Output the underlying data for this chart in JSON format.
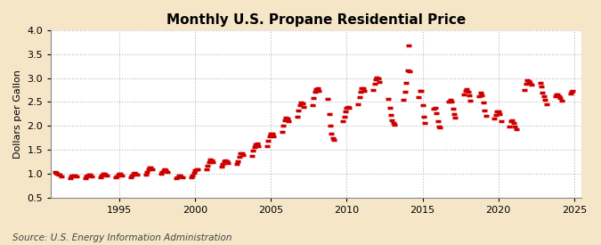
{
  "title": "Monthly U.S. Propane Residential Price",
  "ylabel": "Dollars per Gallon",
  "source_text": "Source: U.S. Energy Information Administration",
  "xlim": [
    1990.5,
    2025.5
  ],
  "ylim": [
    0.5,
    4.0
  ],
  "yticks": [
    0.5,
    1.0,
    1.5,
    2.0,
    2.5,
    3.0,
    3.5,
    4.0
  ],
  "xticks": [
    1995,
    2000,
    2005,
    2010,
    2015,
    2020,
    2025
  ],
  "fig_bg_color": "#F5E6C8",
  "plot_bg_color": "#FFFFFF",
  "marker_color": "#CC0000",
  "grid_color": "#BBBBBB",
  "title_fontsize": 11,
  "ylabel_fontsize": 8,
  "source_fontsize": 7.5,
  "data": [
    [
      1990.75,
      1.04
    ],
    [
      1990.833,
      1.02
    ],
    [
      1990.917,
      0.994
    ],
    [
      1991.0,
      0.985
    ],
    [
      1991.083,
      0.977
    ],
    [
      1991.167,
      0.948
    ],
    [
      1991.75,
      0.905
    ],
    [
      1991.833,
      0.936
    ],
    [
      1991.917,
      0.963
    ],
    [
      1992.0,
      0.96
    ],
    [
      1992.083,
      0.965
    ],
    [
      1992.167,
      0.945
    ],
    [
      1992.75,
      0.905
    ],
    [
      1992.833,
      0.938
    ],
    [
      1992.917,
      0.963
    ],
    [
      1993.0,
      0.98
    ],
    [
      1993.083,
      0.972
    ],
    [
      1993.167,
      0.946
    ],
    [
      1993.75,
      0.93
    ],
    [
      1993.833,
      0.965
    ],
    [
      1993.917,
      0.994
    ],
    [
      1994.0,
      1.005
    ],
    [
      1994.083,
      0.988
    ],
    [
      1994.167,
      0.953
    ],
    [
      1994.75,
      0.916
    ],
    [
      1994.833,
      0.95
    ],
    [
      1994.917,
      0.983
    ],
    [
      1995.0,
      1.003
    ],
    [
      1995.083,
      0.99
    ],
    [
      1995.167,
      0.96
    ],
    [
      1995.75,
      0.927
    ],
    [
      1995.833,
      0.963
    ],
    [
      1995.917,
      0.994
    ],
    [
      1996.0,
      1.013
    ],
    [
      1996.083,
      1.003
    ],
    [
      1996.167,
      0.978
    ],
    [
      1996.75,
      0.985
    ],
    [
      1996.833,
      1.04
    ],
    [
      1996.917,
      1.09
    ],
    [
      1997.0,
      1.12
    ],
    [
      1997.083,
      1.12
    ],
    [
      1997.167,
      1.09
    ],
    [
      1997.75,
      1.0
    ],
    [
      1997.833,
      1.04
    ],
    [
      1997.917,
      1.075
    ],
    [
      1998.0,
      1.09
    ],
    [
      1998.083,
      1.075
    ],
    [
      1998.167,
      1.035
    ],
    [
      1998.75,
      0.9
    ],
    [
      1998.833,
      0.93
    ],
    [
      1998.917,
      0.955
    ],
    [
      1999.0,
      0.965
    ],
    [
      1999.083,
      0.949
    ],
    [
      1999.167,
      0.915
    ],
    [
      1999.75,
      0.917
    ],
    [
      1999.833,
      0.965
    ],
    [
      1999.917,
      1.015
    ],
    [
      2000.0,
      1.065
    ],
    [
      2000.083,
      1.1
    ],
    [
      2000.167,
      1.1
    ],
    [
      2000.75,
      1.1
    ],
    [
      2000.833,
      1.17
    ],
    [
      2000.917,
      1.24
    ],
    [
      2001.0,
      1.29
    ],
    [
      2001.083,
      1.285
    ],
    [
      2001.167,
      1.24
    ],
    [
      2001.75,
      1.155
    ],
    [
      2001.833,
      1.205
    ],
    [
      2001.917,
      1.25
    ],
    [
      2002.0,
      1.275
    ],
    [
      2002.083,
      1.265
    ],
    [
      2002.167,
      1.225
    ],
    [
      2002.75,
      1.195
    ],
    [
      2002.833,
      1.265
    ],
    [
      2002.917,
      1.345
    ],
    [
      2003.0,
      1.42
    ],
    [
      2003.083,
      1.43
    ],
    [
      2003.167,
      1.39
    ],
    [
      2003.75,
      1.38
    ],
    [
      2003.833,
      1.475
    ],
    [
      2003.917,
      1.56
    ],
    [
      2004.0,
      1.62
    ],
    [
      2004.083,
      1.63
    ],
    [
      2004.167,
      1.585
    ],
    [
      2004.75,
      1.585
    ],
    [
      2004.833,
      1.685
    ],
    [
      2004.917,
      1.775
    ],
    [
      2005.0,
      1.84
    ],
    [
      2005.083,
      1.845
    ],
    [
      2005.167,
      1.79
    ],
    [
      2005.75,
      1.88
    ],
    [
      2005.833,
      2.01
    ],
    [
      2005.917,
      2.12
    ],
    [
      2006.0,
      2.18
    ],
    [
      2006.083,
      2.16
    ],
    [
      2006.167,
      2.09
    ],
    [
      2006.75,
      2.2
    ],
    [
      2006.833,
      2.33
    ],
    [
      2006.917,
      2.43
    ],
    [
      2007.0,
      2.48
    ],
    [
      2007.083,
      2.465
    ],
    [
      2007.167,
      2.395
    ],
    [
      2007.75,
      2.44
    ],
    [
      2007.833,
      2.585
    ],
    [
      2007.917,
      2.705
    ],
    [
      2008.0,
      2.775
    ],
    [
      2008.083,
      2.78
    ],
    [
      2008.167,
      2.74
    ],
    [
      2008.75,
      2.565
    ],
    [
      2008.833,
      2.245
    ],
    [
      2008.917,
      2.0
    ],
    [
      2009.0,
      1.84
    ],
    [
      2009.083,
      1.745
    ],
    [
      2009.167,
      1.7
    ],
    [
      2009.75,
      2.09
    ],
    [
      2009.833,
      2.2
    ],
    [
      2009.917,
      2.305
    ],
    [
      2010.0,
      2.38
    ],
    [
      2010.083,
      2.405
    ],
    [
      2010.167,
      2.375
    ],
    [
      2010.75,
      2.445
    ],
    [
      2010.833,
      2.595
    ],
    [
      2010.917,
      2.72
    ],
    [
      2011.0,
      2.795
    ],
    [
      2011.083,
      2.79
    ],
    [
      2011.167,
      2.735
    ],
    [
      2011.75,
      2.75
    ],
    [
      2011.833,
      2.88
    ],
    [
      2011.917,
      2.97
    ],
    [
      2012.0,
      3.015
    ],
    [
      2012.083,
      2.99
    ],
    [
      2012.167,
      2.91
    ],
    [
      2012.75,
      2.56
    ],
    [
      2012.833,
      2.38
    ],
    [
      2012.917,
      2.225
    ],
    [
      2013.0,
      2.115
    ],
    [
      2013.083,
      2.055
    ],
    [
      2013.167,
      2.03
    ],
    [
      2013.75,
      2.54
    ],
    [
      2013.833,
      2.705
    ],
    [
      2013.917,
      2.895
    ],
    [
      2014.0,
      3.16
    ],
    [
      2014.083,
      3.69
    ],
    [
      2014.167,
      3.14
    ],
    [
      2014.75,
      2.61
    ],
    [
      2014.833,
      2.73
    ],
    [
      2014.917,
      2.73
    ],
    [
      2015.0,
      2.44
    ],
    [
      2015.083,
      2.2
    ],
    [
      2015.167,
      2.06
    ],
    [
      2015.75,
      2.35
    ],
    [
      2015.833,
      2.38
    ],
    [
      2015.917,
      2.27
    ],
    [
      2016.0,
      2.1
    ],
    [
      2016.083,
      1.99
    ],
    [
      2016.167,
      1.96
    ],
    [
      2016.75,
      2.5
    ],
    [
      2016.833,
      2.55
    ],
    [
      2016.917,
      2.5
    ],
    [
      2017.0,
      2.35
    ],
    [
      2017.083,
      2.24
    ],
    [
      2017.167,
      2.18
    ],
    [
      2017.75,
      2.65
    ],
    [
      2017.833,
      2.73
    ],
    [
      2017.917,
      2.77
    ],
    [
      2018.0,
      2.72
    ],
    [
      2018.083,
      2.64
    ],
    [
      2018.167,
      2.53
    ],
    [
      2018.75,
      2.62
    ],
    [
      2018.833,
      2.69
    ],
    [
      2018.917,
      2.64
    ],
    [
      2019.0,
      2.48
    ],
    [
      2019.083,
      2.33
    ],
    [
      2019.167,
      2.21
    ],
    [
      2019.75,
      2.16
    ],
    [
      2019.833,
      2.23
    ],
    [
      2019.917,
      2.3
    ],
    [
      2020.0,
      2.3
    ],
    [
      2020.083,
      2.24
    ],
    [
      2020.167,
      2.1
    ],
    [
      2020.75,
      1.99
    ],
    [
      2020.833,
      2.09
    ],
    [
      2020.917,
      2.11
    ],
    [
      2021.0,
      2.06
    ],
    [
      2021.083,
      1.98
    ],
    [
      2021.167,
      1.93
    ],
    [
      2021.75,
      2.75
    ],
    [
      2021.833,
      2.88
    ],
    [
      2021.917,
      2.96
    ],
    [
      2022.0,
      2.94
    ],
    [
      2022.083,
      2.9
    ],
    [
      2022.167,
      2.87
    ],
    [
      2022.75,
      2.9
    ],
    [
      2022.833,
      2.82
    ],
    [
      2022.917,
      2.7
    ],
    [
      2023.0,
      2.62
    ],
    [
      2023.083,
      2.55
    ],
    [
      2023.167,
      2.45
    ],
    [
      2023.75,
      2.62
    ],
    [
      2023.833,
      2.66
    ],
    [
      2023.917,
      2.65
    ],
    [
      2024.0,
      2.62
    ],
    [
      2024.083,
      2.58
    ],
    [
      2024.167,
      2.52
    ],
    [
      2024.75,
      2.67
    ],
    [
      2024.833,
      2.72
    ],
    [
      2024.917,
      2.73
    ]
  ]
}
